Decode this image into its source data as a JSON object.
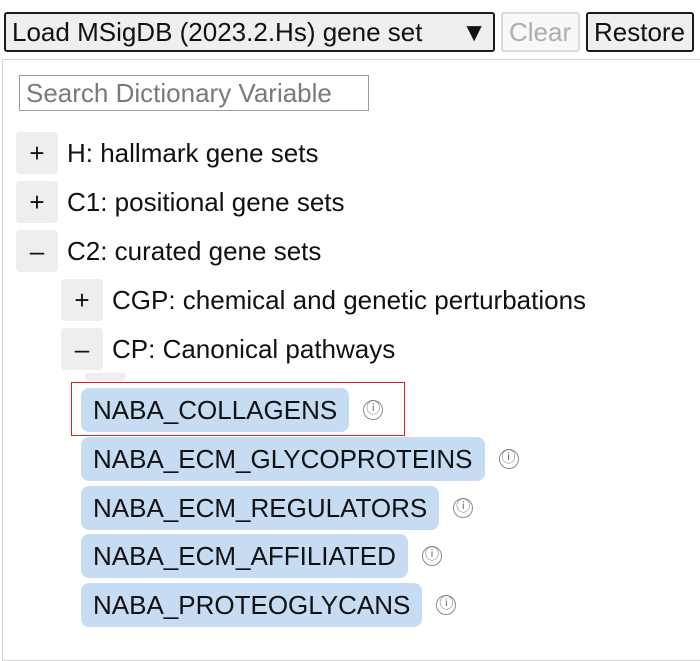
{
  "toolbar": {
    "load_label": "Load MSigDB (2023.2.Hs) gene set",
    "load_caret": "▼",
    "clear_label": "Clear",
    "restore_label": "Restore"
  },
  "search": {
    "placeholder": "Search Dictionary Variable"
  },
  "tree": {
    "categories": [
      {
        "toggle": "+",
        "label": "H: hallmark gene sets"
      },
      {
        "toggle": "+",
        "label": "C1: positional gene sets"
      },
      {
        "toggle": "–",
        "label": "C2: curated gene sets"
      }
    ],
    "subcategories": [
      {
        "toggle": "+",
        "label": "CGP: chemical and genetic perturbations"
      },
      {
        "toggle": "–",
        "label": "CP: Canonical pathways"
      }
    ]
  },
  "gene_sets": [
    {
      "name": "NABA_COLLAGENS",
      "info_icon": "ⓘ"
    },
    {
      "name": "NABA_ECM_GLYCOPROTEINS",
      "info_icon": "ⓘ"
    },
    {
      "name": "NABA_ECM_REGULATORS",
      "info_icon": "ⓘ"
    },
    {
      "name": "NABA_ECM_AFFILIATED",
      "info_icon": "ⓘ"
    },
    {
      "name": "NABA_PROTEOGLYCANS",
      "info_icon": "ⓘ"
    }
  ],
  "colors": {
    "pill_background": "#c6dcf2",
    "toggle_background": "#eeeeee",
    "highlight_border": "#dd2222"
  }
}
